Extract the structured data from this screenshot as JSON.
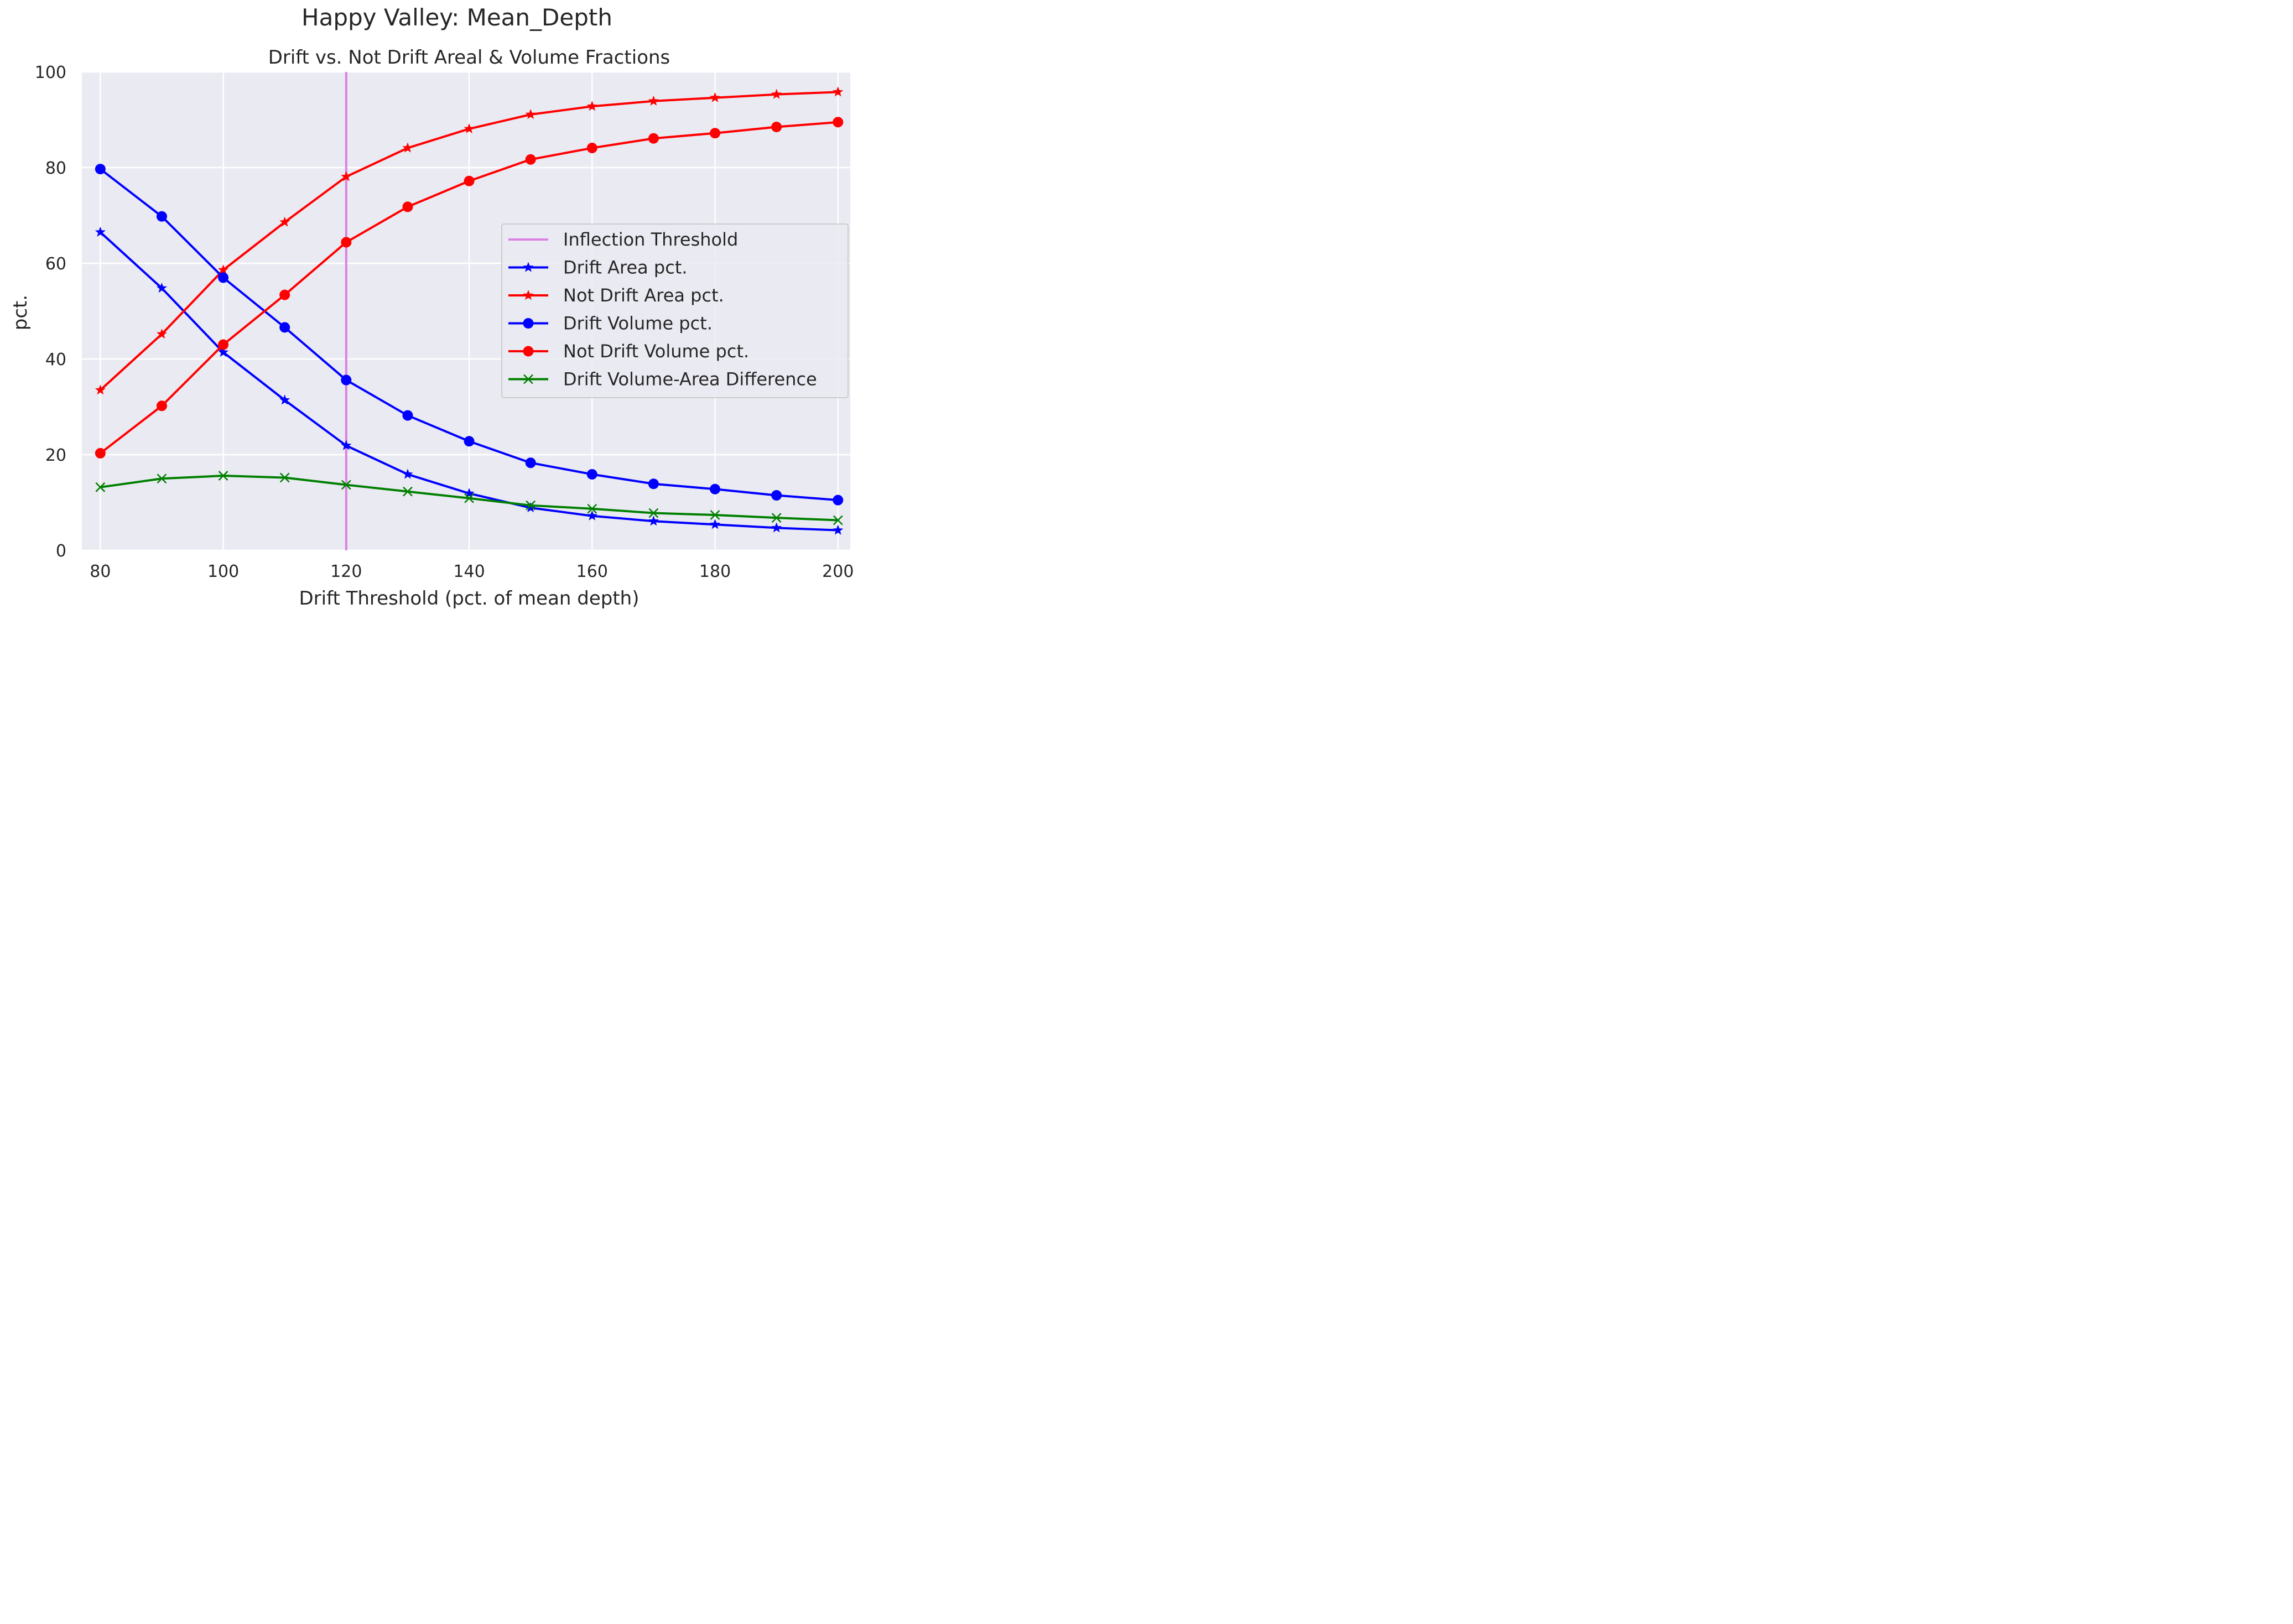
{
  "chart_data": {
    "type": "line",
    "suptitle": "Happy Valley: Mean_Depth",
    "title": "Drift vs. Not Drift Areal & Volume Fractions",
    "xlabel": "Drift Threshold (pct. of mean depth)",
    "ylabel": "pct.",
    "xlim": [
      77,
      202
    ],
    "ylim": [
      0,
      100
    ],
    "xticks": [
      80,
      100,
      120,
      140,
      160,
      180,
      200
    ],
    "yticks": [
      0,
      20,
      40,
      60,
      80,
      100
    ],
    "grid": true,
    "background": "#EAEAF2",
    "legend_position": "center-right",
    "x": [
      80,
      90,
      100,
      110,
      120,
      130,
      140,
      150,
      160,
      170,
      180,
      190,
      200
    ],
    "vlines": [
      {
        "name": "Inflection Threshold",
        "x": 120,
        "color": "#DA82E6"
      }
    ],
    "series": [
      {
        "name": "Drift Area pct.",
        "color": "#0000FF",
        "marker": "star",
        "values": [
          66.5,
          54.8,
          41.4,
          31.4,
          21.9,
          15.9,
          11.9,
          8.9,
          7.2,
          6.1,
          5.4,
          4.7,
          4.2
        ]
      },
      {
        "name": "Not Drift Area pct.",
        "color": "#FF0000",
        "marker": "star",
        "values": [
          33.5,
          45.2,
          58.6,
          68.6,
          78.1,
          84.1,
          88.1,
          91.1,
          92.8,
          93.9,
          94.6,
          95.3,
          95.8
        ]
      },
      {
        "name": "Drift Volume pct.",
        "color": "#0000FF",
        "marker": "circle",
        "values": [
          79.7,
          69.8,
          57.0,
          46.6,
          35.6,
          28.2,
          22.8,
          18.3,
          15.9,
          13.9,
          12.8,
          11.5,
          10.5
        ]
      },
      {
        "name": "Not Drift Volume pct.",
        "color": "#FF0000",
        "marker": "circle",
        "values": [
          20.3,
          30.2,
          43.0,
          53.4,
          64.4,
          71.8,
          77.2,
          81.7,
          84.1,
          86.1,
          87.2,
          88.5,
          89.5
        ]
      },
      {
        "name": "Drift Volume-Area Difference",
        "color": "#008000",
        "marker": "x",
        "values": [
          13.2,
          15.0,
          15.6,
          15.2,
          13.7,
          12.3,
          10.9,
          9.4,
          8.7,
          7.8,
          7.4,
          6.8,
          6.3
        ]
      }
    ]
  }
}
